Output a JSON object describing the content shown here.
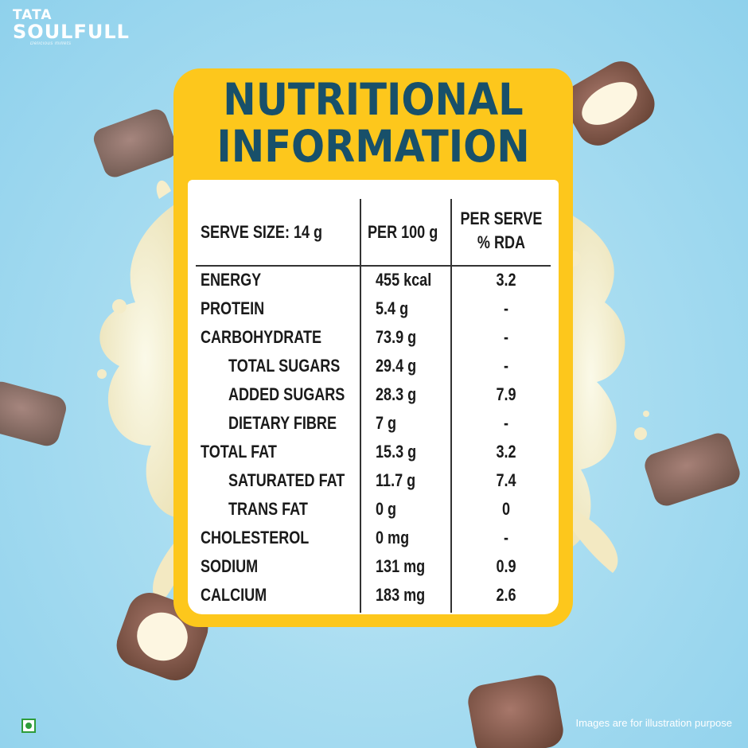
{
  "brand": {
    "line1": "TATA",
    "line2": "SOULFULL",
    "tagline": "Delicious millets"
  },
  "title": "NUTRITIONAL\nINFORMATION",
  "table": {
    "headers": {
      "serve_size": "SERVE SIZE: 14 g",
      "per_100g": "PER 100 g",
      "per_serve_line1": "PER SERVE",
      "per_serve_line2": "% RDA"
    },
    "rows": [
      {
        "name": "ENERGY",
        "per100": "455 kcal",
        "rda": "3.2",
        "indent": false
      },
      {
        "name": "PROTEIN",
        "per100": "5.4 g",
        "rda": "-",
        "indent": false
      },
      {
        "name": "CARBOHYDRATE",
        "per100": "73.9 g",
        "rda": "-",
        "indent": false
      },
      {
        "name": "TOTAL SUGARS",
        "per100": "29.4 g",
        "rda": "-",
        "indent": true
      },
      {
        "name": "ADDED SUGARS",
        "per100": "28.3 g",
        "rda": "7.9",
        "indent": true
      },
      {
        "name": "DIETARY FIBRE",
        "per100": "7 g",
        "rda": "-",
        "indent": true
      },
      {
        "name": "TOTAL FAT",
        "per100": "15.3 g",
        "rda": "3.2",
        "indent": false
      },
      {
        "name": "SATURATED FAT",
        "per100": "11.7 g",
        "rda": "7.4",
        "indent": true
      },
      {
        "name": "TRANS FAT",
        "per100": "0 g",
        "rda": "0",
        "indent": true
      },
      {
        "name": "CHOLESTEROL",
        "per100": "0 mg",
        "rda": "-",
        "indent": false
      },
      {
        "name": "SODIUM",
        "per100": "131 mg",
        "rda": "0.9",
        "indent": false
      },
      {
        "name": "CALCIUM",
        "per100": "183 mg",
        "rda": "2.6",
        "indent": false
      }
    ]
  },
  "footnote": "Images are for illustration purpose",
  "colors": {
    "banner": "#fdc71c",
    "title_text": "#18506a",
    "background": "#a9ddf1",
    "veg_mark": "#2e9c3a"
  }
}
